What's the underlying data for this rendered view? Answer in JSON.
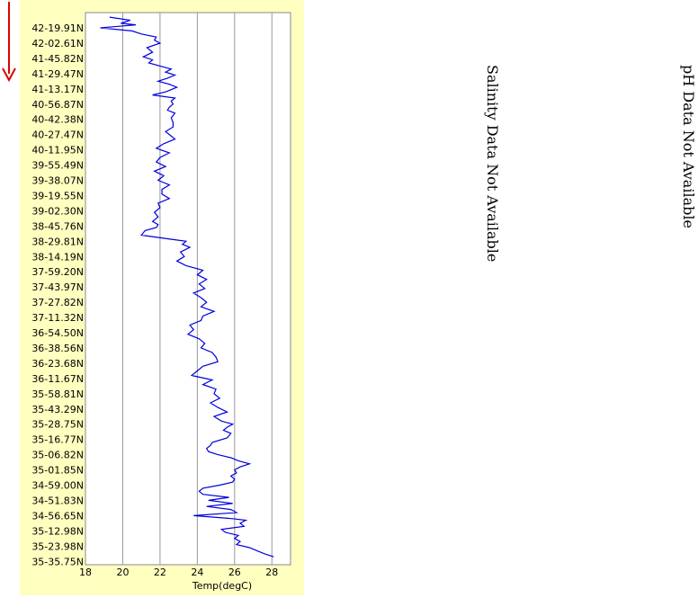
{
  "colors": {
    "panel_bg": "#ffffc0",
    "plot_bg": "#ffffff",
    "line": "#0000dd",
    "grid": "#999999",
    "arrow": "#dd0000"
  },
  "indicator": {
    "icon": "red-down-arrow-icon"
  },
  "salinity_text": "Salinity Data Not Available",
  "ph_text": "pH Data Not Available",
  "chart_data": {
    "type": "line",
    "orientation": "vertical-profile",
    "title": "",
    "xlabel": "Temp(degC)",
    "ylabel": "",
    "xlim": [
      18,
      29
    ],
    "xticks": [
      18,
      20,
      22,
      24,
      26,
      28
    ],
    "grid": "vertical",
    "y_tick_labels": [
      "42-19.91N",
      "42-02.61N",
      "41-45.82N",
      "41-29.47N",
      "41-13.17N",
      "40-56.87N",
      "40-42.38N",
      "40-27.47N",
      "40-11.95N",
      "39-55.49N",
      "39-38.07N",
      "39-19.55N",
      "39-02.30N",
      "38-45.76N",
      "38-29.81N",
      "38-14.19N",
      "37-59.20N",
      "37-43.97N",
      "37-27.82N",
      "37-11.32N",
      "36-54.50N",
      "36-38.56N",
      "36-23.68N",
      "36-11.67N",
      "35-58.81N",
      "35-43.29N",
      "35-28.75N",
      "35-16.77N",
      "35-06.82N",
      "35-01.85N",
      "34-59.00N",
      "34-51.83N",
      "34-56.65N",
      "35-12.98N",
      "35-23.98N",
      "35-35.75N"
    ],
    "series": [
      {
        "pos": [
          -0.7,
          -0.5,
          -0.3,
          -0.2,
          0.0,
          0.2,
          0.4,
          0.6,
          0.8,
          1.0,
          1.3,
          1.6,
          1.9,
          2.1,
          2.3,
          2.5,
          2.7,
          2.9,
          3.1,
          3.3,
          3.5,
          3.7,
          3.9,
          4.2,
          4.4,
          4.6,
          4.8,
          5.0,
          5.2,
          5.4,
          5.6,
          5.9,
          6.2,
          6.5,
          6.8,
          7.0,
          7.3,
          7.6,
          7.9,
          8.2,
          8.5,
          8.8,
          9.1,
          9.4,
          9.7,
          10.0,
          10.3,
          10.6,
          10.9,
          11.2,
          11.5,
          11.8,
          12.1,
          12.4,
          12.7,
          12.9,
          13.1,
          13.3,
          13.6,
          13.9,
          14.0,
          14.2,
          14.4,
          14.7,
          15.0,
          15.3,
          15.6,
          15.9,
          16.2,
          16.5,
          16.8,
          17.1,
          17.4,
          17.7,
          18.0,
          18.3,
          18.6,
          18.9,
          19.2,
          19.5,
          19.8,
          20.1,
          20.4,
          20.7,
          21.0,
          21.3,
          21.6,
          21.9,
          22.2,
          22.5,
          22.8,
          23.1,
          23.4,
          23.7,
          24.0,
          24.3,
          24.6,
          24.9,
          25.2,
          25.5,
          25.8,
          26.0,
          26.2,
          26.4,
          26.6,
          26.9,
          27.2,
          27.4,
          27.6,
          27.8,
          28.0,
          28.2,
          28.4,
          28.6,
          28.8,
          29.0,
          29.2,
          29.4,
          29.6,
          29.8,
          30.0,
          30.2,
          30.4,
          30.6,
          30.8,
          31.0,
          31.2,
          31.4,
          31.6,
          31.8,
          32.0,
          32.2,
          32.3,
          32.5,
          32.7,
          32.9,
          33.1,
          33.3,
          33.5,
          33.7,
          33.9,
          34.1,
          34.3,
          34.5,
          34.7,
          34.9,
          35.0
        ],
        "temp": [
          19.3,
          20.4,
          19.9,
          20.7,
          18.8,
          20.5,
          21.0,
          21.8,
          21.7,
          22.0,
          21.3,
          21.6,
          21.1,
          21.6,
          21.4,
          22.0,
          22.6,
          22.3,
          22.8,
          22.4,
          21.9,
          22.5,
          22.9,
          22.3,
          21.6,
          22.8,
          22.6,
          22.7,
          22.5,
          22.4,
          22.8,
          22.6,
          22.7,
          22.7,
          22.3,
          22.5,
          22.8,
          22.2,
          21.8,
          22.5,
          22.0,
          21.8,
          22.3,
          21.7,
          22.2,
          21.9,
          22.5,
          22.1,
          22.1,
          22.5,
          21.9,
          22.0,
          21.7,
          21.9,
          21.6,
          21.9,
          21.8,
          21.2,
          21.0,
          22.8,
          23.4,
          23.2,
          23.6,
          23.1,
          23.3,
          22.9,
          23.4,
          24.3,
          24.0,
          24.5,
          24.1,
          24.4,
          23.8,
          24.2,
          24.5,
          24.2,
          24.9,
          24.3,
          24.2,
          23.6,
          23.8,
          23.5,
          24.1,
          24.4,
          24.2,
          24.8,
          25.0,
          25.1,
          24.3,
          24.0,
          23.7,
          24.8,
          24.3,
          25.0,
          24.9,
          25.2,
          24.7,
          25.1,
          25.6,
          24.9,
          25.3,
          25.9,
          25.6,
          25.4,
          25.8,
          25.6,
          24.8,
          24.7,
          24.5,
          24.6,
          25.1,
          25.8,
          26.2,
          26.8,
          26.3,
          26.0,
          26.1,
          25.8,
          26.0,
          25.9,
          25.2,
          24.3,
          24.1,
          24.3,
          25.7,
          24.6,
          25.9,
          24.5,
          25.8,
          26.1,
          23.8,
          25.9,
          26.6,
          26.3,
          26.5,
          25.3,
          25.5,
          26.2,
          26.0,
          26.3,
          26.1,
          26.8,
          27.2,
          27.6,
          28.1
        ]
      }
    ]
  }
}
